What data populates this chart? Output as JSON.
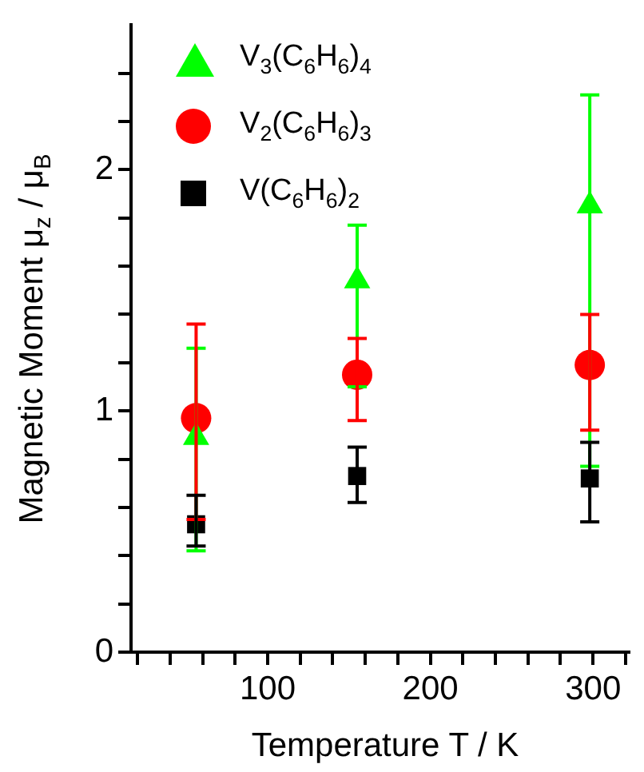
{
  "chart_data": {
    "type": "scatter",
    "xlabel": "Temperature T / K",
    "ylabel": "Magnetic Moment μ$_{z}$ / μ$_{B}$",
    "xlim": [
      16,
      322
    ],
    "xticks": [
      {
        "value": 20,
        "label": null
      },
      {
        "value": 40,
        "label": null
      },
      {
        "value": 60,
        "label": null
      },
      {
        "value": 80,
        "label": null
      },
      100,
      {
        "value": 120,
        "label": null
      },
      {
        "value": 140,
        "label": null
      },
      {
        "value": 160,
        "label": null
      },
      {
        "value": 180,
        "label": null
      },
      200,
      {
        "value": 220,
        "label": null
      },
      {
        "value": 240,
        "label": null
      },
      {
        "value": 260,
        "label": null
      },
      {
        "value": 280,
        "label": null
      },
      300,
      {
        "value": 320,
        "label": null
      }
    ],
    "ylim": [
      0,
      2.6
    ],
    "yticks": [
      0,
      {
        "value": 0.2,
        "label": null
      },
      {
        "value": 0.4,
        "label": null
      },
      {
        "value": 0.6,
        "label": null
      },
      {
        "value": 0.8,
        "label": null
      },
      1,
      {
        "value": 1.2,
        "label": null
      },
      {
        "value": 1.4,
        "label": null
      },
      {
        "value": 1.6,
        "label": null
      },
      {
        "value": 1.8,
        "label": null
      },
      2,
      {
        "value": 2.2,
        "label": null
      },
      {
        "value": 2.4,
        "label": null
      }
    ],
    "grid": false,
    "legend": "top left",
    "series": [
      {
        "name": "V$_{3}$(C$_{6}$H$_{6}$)$_{4}$",
        "color": "#00ff00",
        "marker": "triangle",
        "x": [
          56,
          155,
          298
        ],
        "values": [
          0.89,
          1.54,
          1.85
        ],
        "errors": [
          [
            0.42,
            1.26
          ],
          [
            1.1,
            1.77
          ],
          [
            0.77,
            2.31
          ]
        ]
      },
      {
        "name": "V$_{2}$(C$_{6}$H$_{6}$)$_{3}$",
        "color": "#ff0000",
        "marker": "circle",
        "x": [
          56,
          155,
          298
        ],
        "values": [
          0.97,
          1.15,
          1.19
        ],
        "errors": [
          [
            0.55,
            1.36
          ],
          [
            0.96,
            1.3
          ],
          [
            0.92,
            1.4
          ]
        ]
      },
      {
        "name": "V(C$_{6}$H$_{6}$)$_{2}$",
        "color": "#000000",
        "marker": "square",
        "x": [
          56,
          155,
          298
        ],
        "values": [
          0.53,
          0.73,
          0.72
        ],
        "errors": [
          [
            0.44,
            0.65
          ],
          [
            0.62,
            0.85
          ],
          [
            0.54,
            0.87
          ]
        ]
      }
    ]
  }
}
